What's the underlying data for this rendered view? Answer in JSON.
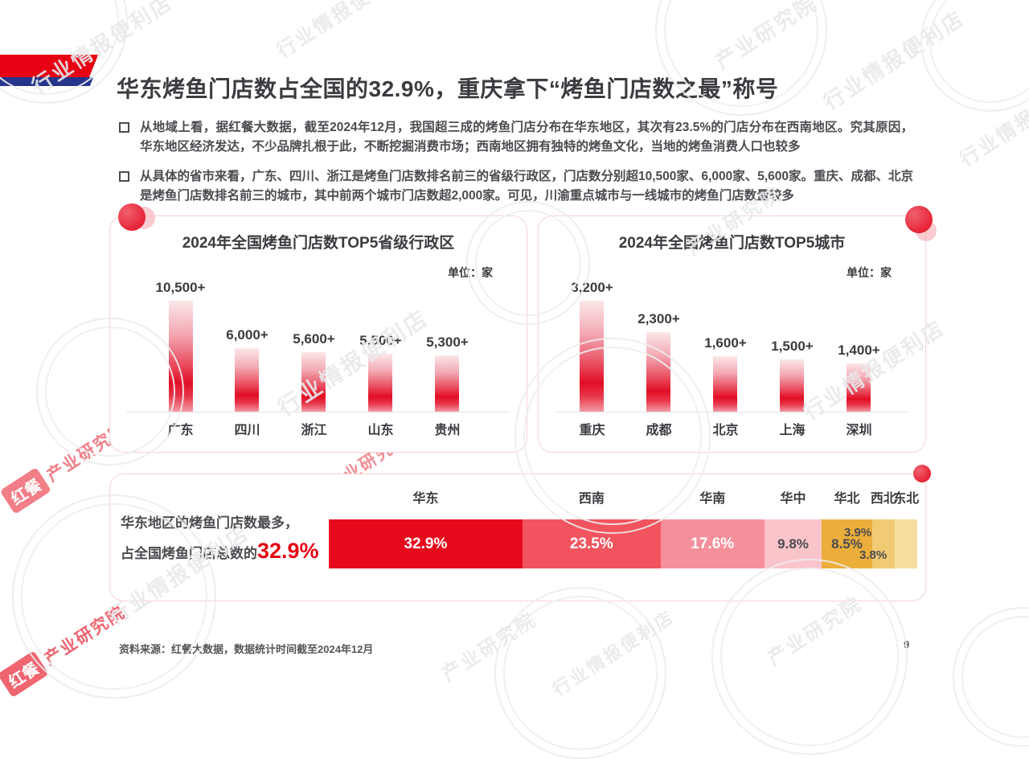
{
  "header": {
    "title": "华东烤鱼门店数占全国的32.9%，重庆拿下“烤鱼门店数之最”称号",
    "flag_red": "#e60012",
    "flag_blue": "#26358c"
  },
  "bullets": [
    {
      "text": "从地域上看，据红餐大数据，截至2024年12月，我国超三成的烤鱼门店分布在华东地区，其次有23.5%的门店分布在西南地区。究其原因，华东地区经济发达，不少品牌扎根于此，不断挖掘消费市场；西南地区拥有独特的烤鱼文化，当地的烤鱼消费人口也较多"
    },
    {
      "text": "从具体的省市来看，广东、四川、浙江是烤鱼门店数排名前三的省级行政区，门店数分别超10,500家、6,000家、5,600家。重庆、成都、北京是烤鱼门店数排名前三的城市，其中前两个城市门店数超2,000家。可见，川渝重点城市与一线城市的烤鱼门店数量较多"
    }
  ],
  "chart_data": [
    {
      "id": "provinces",
      "type": "bar",
      "title": "2024年全国烤鱼门店数TOP5省级行政区",
      "unit": "单位：家",
      "categories": [
        "广东",
        "四川",
        "浙江",
        "山东",
        "贵州"
      ],
      "values": [
        10500,
        6000,
        5600,
        5500,
        5300
      ],
      "value_labels": [
        "10,500+",
        "6,000+",
        "5,600+",
        "5,500+",
        "5,300+"
      ],
      "ylim": [
        0,
        10500
      ],
      "grid": false
    },
    {
      "id": "cities",
      "type": "bar",
      "title": "2024年全国烤鱼门店数TOP5城市",
      "unit": "单位：家",
      "categories": [
        "重庆",
        "成都",
        "北京",
        "上海",
        "深圳"
      ],
      "values": [
        3200,
        2300,
        1600,
        1500,
        1400
      ],
      "value_labels": [
        "3,200+",
        "2,300+",
        "1,600+",
        "1,500+",
        "1,400+"
      ],
      "ylim": [
        0,
        3200
      ],
      "grid": false
    },
    {
      "id": "regions",
      "type": "bar",
      "subtype": "horizontal-stacked",
      "categories": [
        "华东",
        "西南",
        "华南",
        "华中",
        "华北",
        "西北",
        "东北"
      ],
      "values": [
        32.9,
        23.5,
        17.6,
        9.8,
        8.5,
        3.9,
        3.8
      ],
      "value_labels": [
        "32.9%",
        "23.5%",
        "17.6%",
        "9.8%",
        "8.5%",
        "3.9%",
        "3.8%"
      ],
      "colors": [
        "#e70a1d",
        "#f2545f",
        "#f5909a",
        "#fac4cb",
        "#ebae3b",
        "#f0cb74",
        "#f5dda0"
      ],
      "label_colors": [
        "#ffffff",
        "#ffffff",
        "#ffffff",
        "#4b4b50",
        "#4b4b50",
        "#4b4b50",
        "#4b4b50"
      ],
      "xlim": [
        0,
        100
      ]
    }
  ],
  "highlight": {
    "line1": "华东地区的烤鱼门店数最多，",
    "line2_prefix": "占全国烤鱼门店总数的",
    "line2_value": "32.9%",
    "value_color": "#e60012"
  },
  "footer": {
    "source": "资料来源：红餐大数据，数据统计时间截至2024年12月",
    "page_number": "9"
  },
  "watermarks": {
    "gray_text_long": "行业情报便利店",
    "gray_text_short": "产业研究院",
    "red_brand": "红餐",
    "red_text": "产业研究院"
  }
}
